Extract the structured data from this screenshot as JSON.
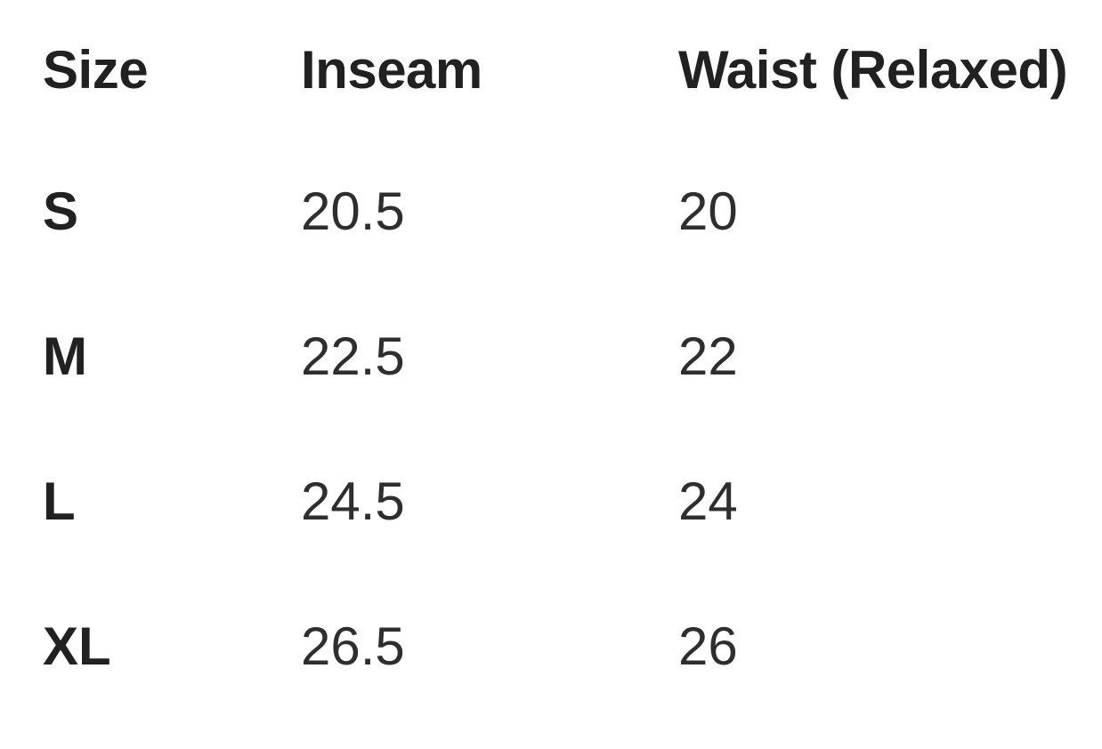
{
  "colors": {
    "background": "#ffffff",
    "header_text": "#212121",
    "label_text": "#212121",
    "value_text": "#2e2e2e"
  },
  "size_chart": {
    "columns": [
      "Size",
      "Inseam",
      "Waist (Relaxed)"
    ],
    "rows": [
      {
        "size": "S",
        "inseam": "20.5",
        "waist_relaxed": "20"
      },
      {
        "size": "M",
        "inseam": "22.5",
        "waist_relaxed": "22"
      },
      {
        "size": "L",
        "inseam": "24.5",
        "waist_relaxed": "24"
      },
      {
        "size": "XL",
        "inseam": "26.5",
        "waist_relaxed": "26"
      }
    ]
  }
}
